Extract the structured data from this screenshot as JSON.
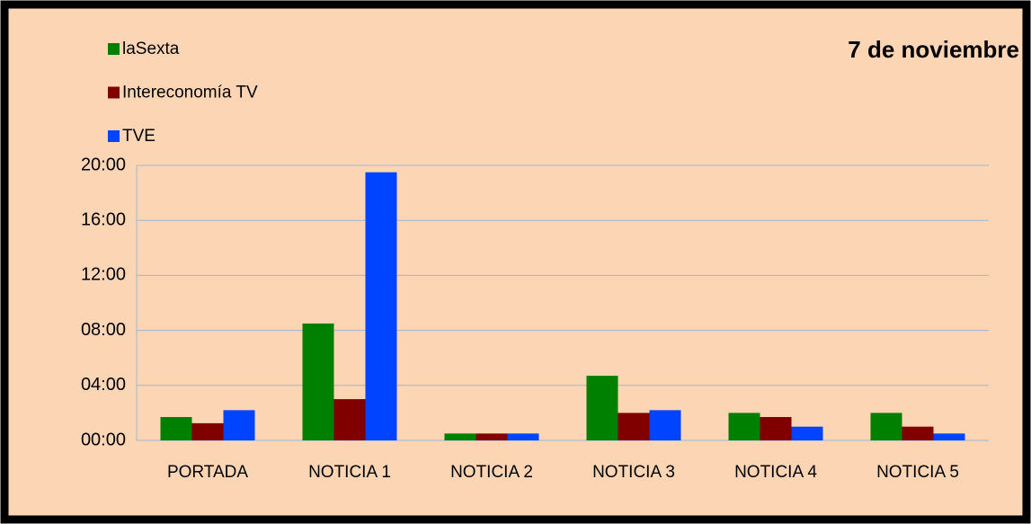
{
  "chart_data": {
    "type": "bar",
    "title": "7 de noviembre",
    "categories": [
      "PORTADA",
      "NOTICIA 1",
      "NOTICIA 2",
      "NOTICIA 3",
      "NOTICIA 4",
      "NOTICIA 5"
    ],
    "series": [
      {
        "name": "laSexta",
        "color": "#008000",
        "values": [
          1.7,
          8.5,
          0.5,
          4.7,
          2.0,
          2.0
        ]
      },
      {
        "name": "Intereconomía TV",
        "color": "#800000",
        "values": [
          1.25,
          3.0,
          0.5,
          2.0,
          1.7,
          1.0
        ]
      },
      {
        "name": "TVE",
        "color": "#0044ff",
        "values": [
          2.2,
          19.5,
          0.5,
          2.2,
          1.0,
          0.5
        ]
      }
    ],
    "ylim": [
      0,
      20
    ],
    "yticks": [
      {
        "value": 0,
        "label": "00:00"
      },
      {
        "value": 4,
        "label": "04:00"
      },
      {
        "value": 8,
        "label": "08:00"
      },
      {
        "value": 12,
        "label": "12:00"
      },
      {
        "value": 16,
        "label": "16:00"
      },
      {
        "value": 20,
        "label": "20:00"
      }
    ],
    "grid": true,
    "legend": "top-left"
  }
}
